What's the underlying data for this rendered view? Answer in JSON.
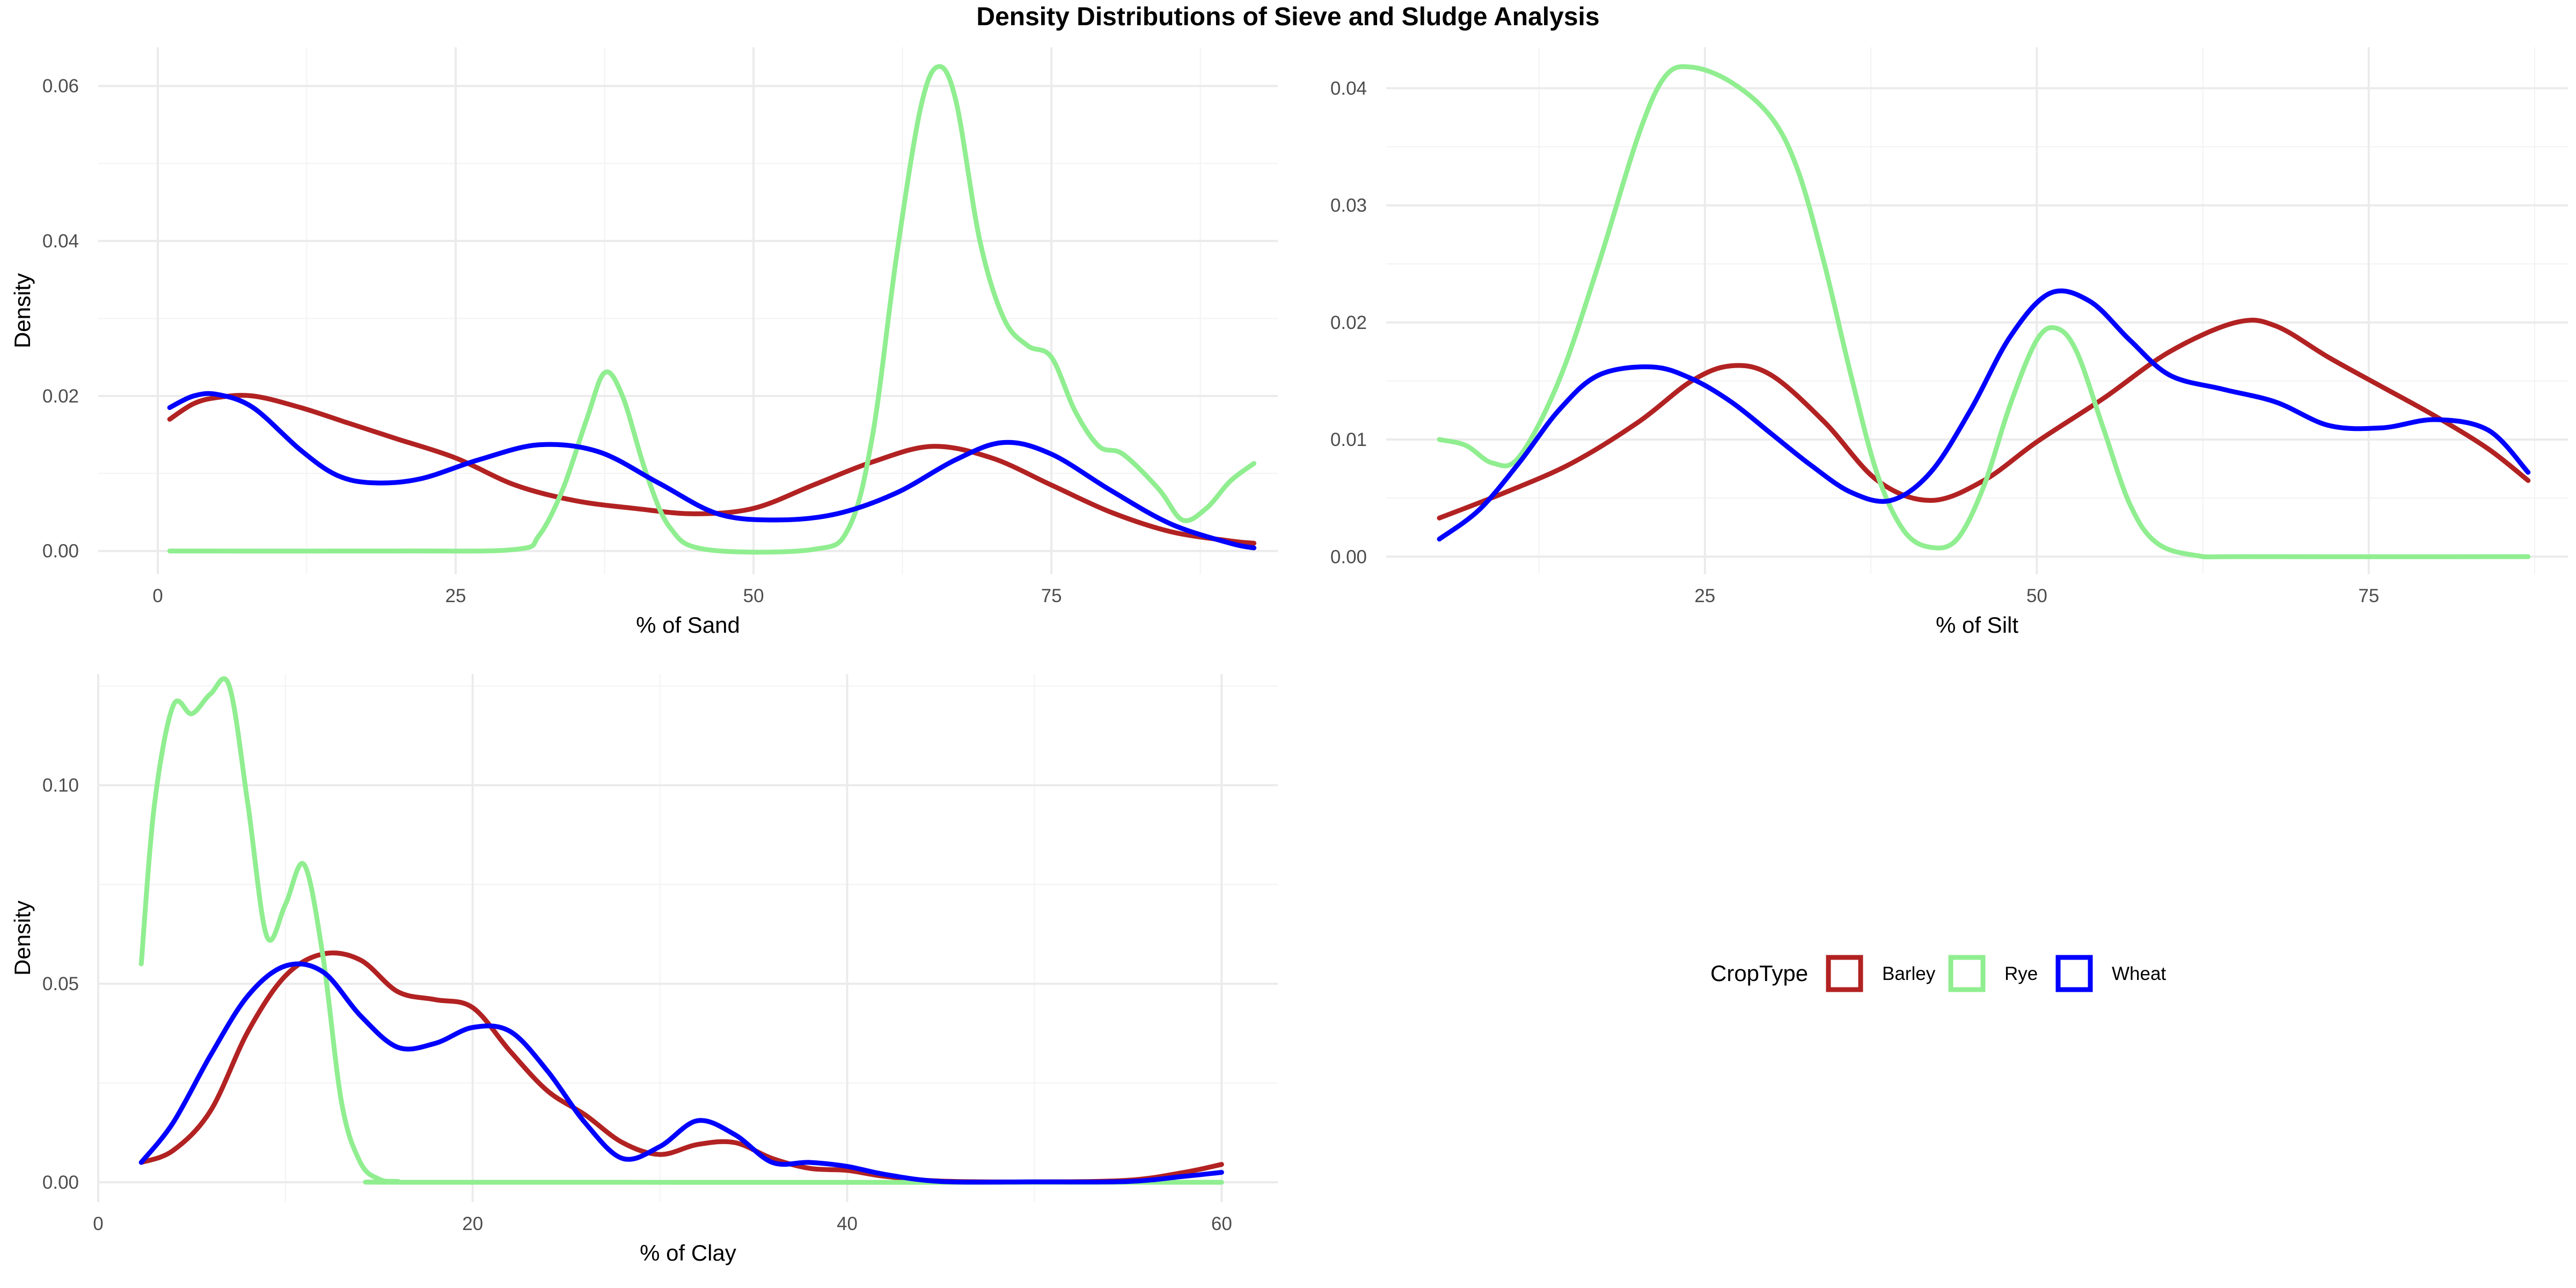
{
  "title": "Density Distributions of Sieve and Sludge Analysis",
  "legend": {
    "title": "CropType",
    "placement": "right",
    "entries": [
      {
        "name": "Barley",
        "color": "#B22222"
      },
      {
        "name": "Rye",
        "color": "#90EE90"
      },
      {
        "name": "Wheat",
        "color": "#0000FF"
      }
    ]
  },
  "chart_data": [
    {
      "type": "line",
      "xlabel": "% of Sand",
      "ylabel": "Density",
      "xlim": [
        -5,
        94
      ],
      "ylim": [
        -0.003,
        0.065
      ],
      "xticks": [
        0,
        25,
        50,
        75
      ],
      "yticks": [
        0.0,
        0.02,
        0.04,
        0.06
      ],
      "ytick_labels": [
        "0.00",
        "0.02",
        "0.04",
        "0.06"
      ],
      "grid": true,
      "series": [
        {
          "name": "Barley",
          "color": "#B22222",
          "x": [
            1,
            3,
            5,
            8,
            12,
            16,
            20,
            25,
            30,
            35,
            40,
            45,
            50,
            55,
            60,
            65,
            70,
            75,
            80,
            85,
            90,
            92
          ],
          "y": [
            0.017,
            0.019,
            0.0198,
            0.02,
            0.0185,
            0.0165,
            0.0145,
            0.012,
            0.0085,
            0.0065,
            0.0055,
            0.0048,
            0.0055,
            0.0085,
            0.0115,
            0.0135,
            0.012,
            0.0085,
            0.005,
            0.0025,
            0.0013,
            0.001
          ]
        },
        {
          "name": "Rye",
          "color": "#90EE90",
          "x": [
            1,
            20,
            30,
            32,
            34,
            36,
            37.5,
            39,
            41,
            43,
            46,
            55,
            58,
            60,
            62,
            64,
            65.5,
            67,
            69,
            71,
            73,
            75,
            77,
            79,
            81,
            84,
            86,
            88,
            90,
            92
          ],
          "y": [
            0,
            0,
            0.0002,
            0.002,
            0.008,
            0.017,
            0.023,
            0.02,
            0.01,
            0.003,
            0.0002,
            0.0002,
            0.003,
            0.015,
            0.038,
            0.057,
            0.0625,
            0.058,
            0.04,
            0.03,
            0.0265,
            0.025,
            0.018,
            0.0135,
            0.0125,
            0.008,
            0.004,
            0.0055,
            0.009,
            0.0113
          ]
        },
        {
          "name": "Wheat",
          "color": "#0000FF",
          "x": [
            1,
            3,
            5,
            8,
            12,
            15,
            18,
            22,
            27,
            32,
            37,
            42,
            47,
            52,
            57,
            62,
            67,
            71,
            75,
            80,
            85,
            90,
            92
          ],
          "y": [
            0.0185,
            0.02,
            0.0202,
            0.0185,
            0.013,
            0.0098,
            0.0088,
            0.0093,
            0.0118,
            0.0137,
            0.0128,
            0.0088,
            0.0048,
            0.004,
            0.0048,
            0.0075,
            0.0118,
            0.014,
            0.0125,
            0.0078,
            0.0035,
            0.001,
            0.0004
          ]
        }
      ]
    },
    {
      "type": "line",
      "xlabel": "% of Silt",
      "ylabel": "Density",
      "xlim": [
        1,
        90
      ],
      "ylim": [
        -0.0015,
        0.0435
      ],
      "xticks": [
        25,
        50,
        75
      ],
      "yticks": [
        0.0,
        0.01,
        0.02,
        0.03,
        0.04
      ],
      "ytick_labels": [
        "0.00",
        "0.01",
        "0.02",
        "0.03",
        "0.04"
      ],
      "grid": true,
      "series": [
        {
          "name": "Barley",
          "color": "#B22222",
          "x": [
            5,
            10,
            15,
            20,
            24,
            27,
            30,
            34,
            38,
            42,
            46,
            50,
            55,
            60,
            65,
            68,
            72,
            76,
            80,
            84,
            87
          ],
          "y": [
            0.0033,
            0.0055,
            0.008,
            0.0115,
            0.015,
            0.0163,
            0.0155,
            0.0115,
            0.0065,
            0.0048,
            0.0065,
            0.0098,
            0.0135,
            0.0175,
            0.02,
            0.0197,
            0.017,
            0.0145,
            0.012,
            0.0092,
            0.0065
          ]
        },
        {
          "name": "Rye",
          "color": "#90EE90",
          "x": [
            5,
            7,
            9,
            11,
            14,
            17,
            20,
            22,
            24,
            27,
            30,
            32,
            34,
            36,
            38,
            40,
            42,
            44,
            46,
            48,
            50,
            51.5,
            53,
            55,
            57,
            59,
            62,
            66,
            87
          ],
          "y": [
            0.01,
            0.0095,
            0.008,
            0.0085,
            0.015,
            0.025,
            0.036,
            0.041,
            0.0418,
            0.0405,
            0.0375,
            0.033,
            0.025,
            0.0155,
            0.007,
            0.0022,
            0.0008,
            0.0015,
            0.006,
            0.013,
            0.0185,
            0.0195,
            0.0175,
            0.011,
            0.0045,
            0.0012,
            0.0001,
            0,
            0
          ]
        },
        {
          "name": "Wheat",
          "color": "#0000FF",
          "x": [
            5,
            8,
            11,
            14,
            17,
            21,
            24,
            27,
            30,
            33,
            36,
            39,
            42,
            45,
            48,
            51,
            54,
            57,
            60,
            64,
            68,
            72,
            76,
            80,
            84,
            87
          ],
          "y": [
            0.0015,
            0.004,
            0.008,
            0.0125,
            0.0155,
            0.0162,
            0.0152,
            0.0132,
            0.0105,
            0.0078,
            0.0055,
            0.0048,
            0.0072,
            0.0125,
            0.0188,
            0.0225,
            0.0218,
            0.0185,
            0.0155,
            0.0143,
            0.0132,
            0.0112,
            0.011,
            0.0117,
            0.0108,
            0.0072
          ]
        }
      ]
    },
    {
      "type": "line",
      "xlabel": "% of Clay",
      "ylabel": "Density",
      "xlim": [
        0,
        63
      ],
      "ylim": [
        -0.005,
        0.128
      ],
      "xticks": [
        0,
        20,
        40,
        60
      ],
      "yticks": [
        0.0,
        0.05,
        0.1
      ],
      "ytick_labels": [
        "0.00",
        "0.05",
        "0.10"
      ],
      "grid": true,
      "series": [
        {
          "name": "Barley",
          "color": "#B22222",
          "x": [
            2.3,
            4,
            6,
            8,
            10,
            12,
            14,
            16,
            18,
            20,
            22,
            24,
            26,
            28,
            30,
            32,
            34,
            36,
            38,
            40,
            42,
            45,
            50,
            55,
            58,
            60
          ],
          "y": [
            0.005,
            0.008,
            0.018,
            0.038,
            0.052,
            0.0575,
            0.056,
            0.048,
            0.046,
            0.044,
            0.033,
            0.023,
            0.017,
            0.01,
            0.007,
            0.0095,
            0.01,
            0.006,
            0.0035,
            0.003,
            0.0015,
            0.0003,
            0.0001,
            0.0005,
            0.0025,
            0.0045
          ]
        },
        {
          "name": "Rye",
          "color": "#90EE90",
          "x": [
            2.3,
            3,
            4,
            5,
            6,
            7,
            8,
            9,
            10,
            11,
            12,
            13,
            14,
            15,
            16,
            18,
            60
          ],
          "y": [
            0.055,
            0.095,
            0.12,
            0.118,
            0.123,
            0.125,
            0.095,
            0.062,
            0.07,
            0.08,
            0.057,
            0.02,
            0.005,
            0.0008,
            0.0002,
            0,
            0
          ]
        },
        {
          "name": "Wheat",
          "color": "#0000FF",
          "x": [
            2.3,
            4,
            6,
            8,
            10,
            12,
            14,
            16,
            18,
            20,
            22,
            24,
            26,
            28,
            30,
            32,
            34,
            36,
            38,
            40,
            42,
            45,
            50,
            55,
            58,
            60
          ],
          "y": [
            0.005,
            0.015,
            0.032,
            0.047,
            0.0545,
            0.053,
            0.042,
            0.034,
            0.035,
            0.039,
            0.038,
            0.028,
            0.015,
            0.006,
            0.009,
            0.0155,
            0.012,
            0.005,
            0.005,
            0.004,
            0.002,
            0.0002,
            0.0001,
            0.0002,
            0.0015,
            0.0025
          ]
        }
      ]
    }
  ]
}
